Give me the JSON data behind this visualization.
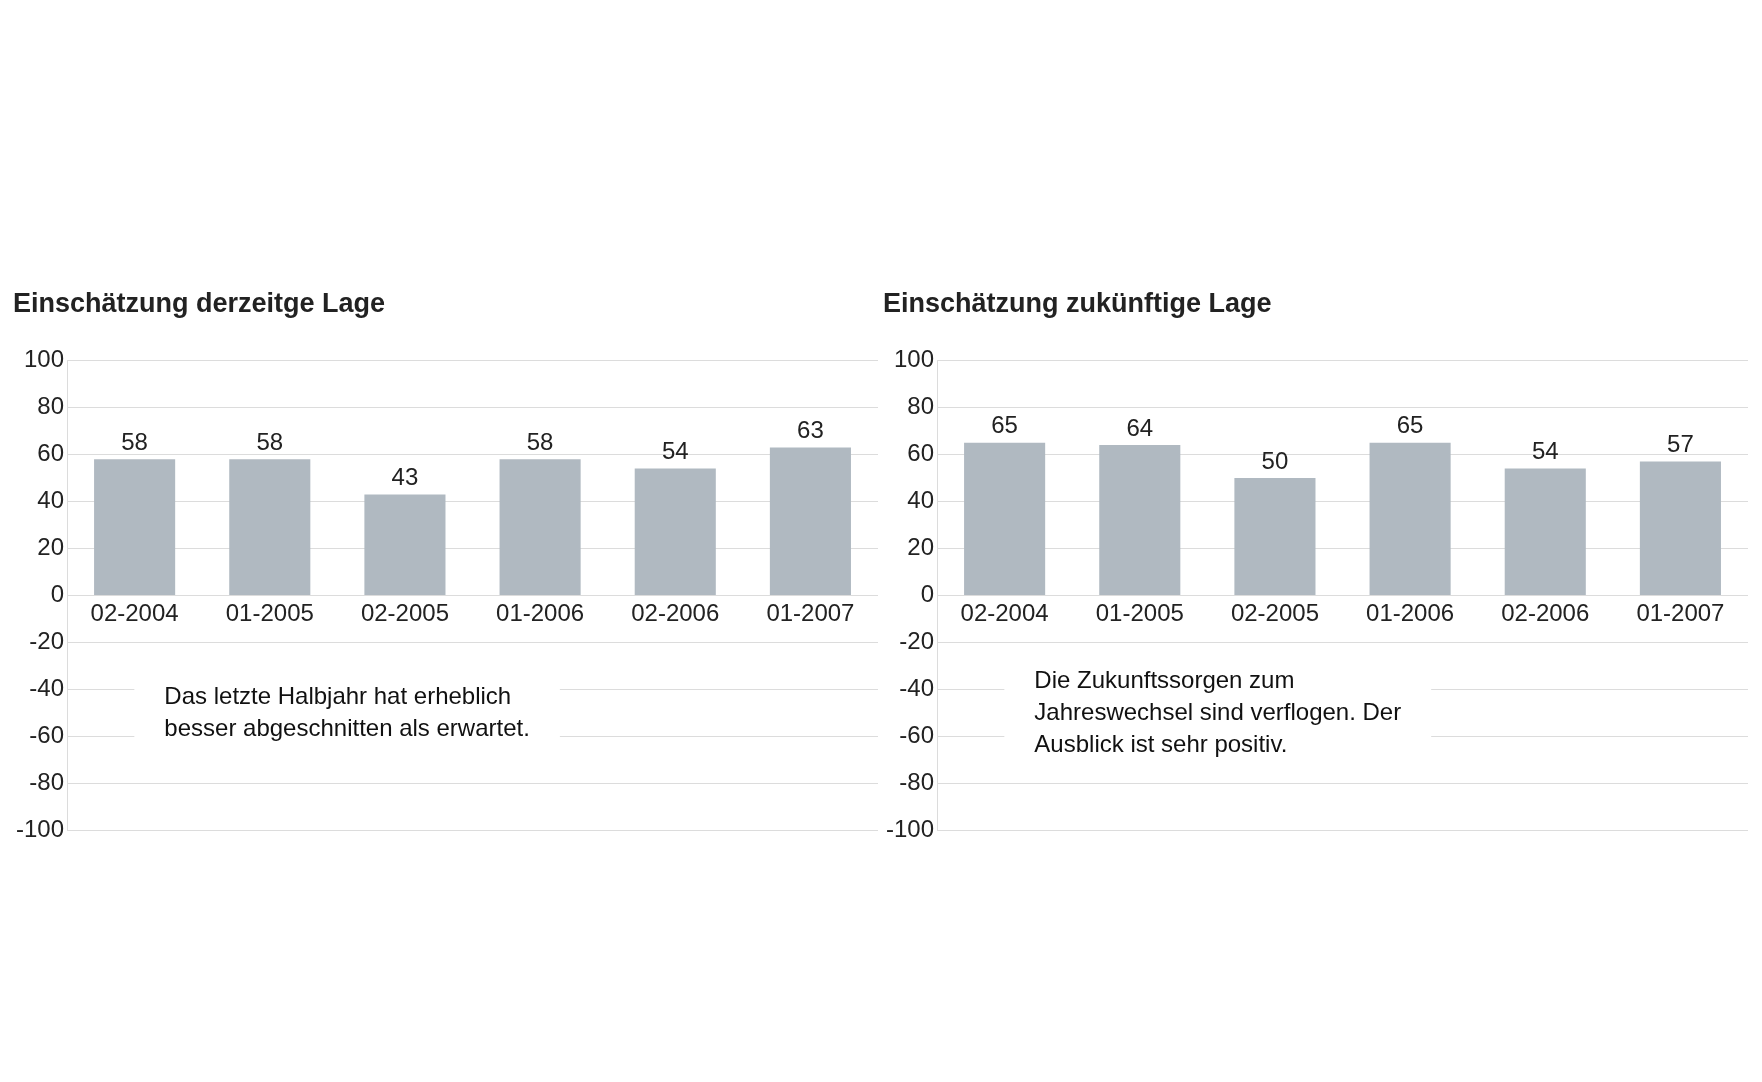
{
  "chart_data": [
    {
      "type": "bar",
      "title": "Einschätzung derzeitge Lage",
      "categories": [
        "02-2004",
        "01-2005",
        "02-2005",
        "01-2006",
        "02-2006",
        "01-2007"
      ],
      "values": [
        58,
        58,
        43,
        58,
        54,
        63
      ],
      "color": "#b0b9c1",
      "ylim": [
        -100,
        100
      ],
      "yticks": [
        -100,
        -80,
        -60,
        -40,
        -20,
        0,
        20,
        40,
        60,
        80,
        100
      ],
      "grid": "y",
      "data_labels": true,
      "annotations": [
        "Das letzte Halbjahr hat erheblich besser abgeschnitten als erwartet."
      ]
    },
    {
      "type": "bar",
      "title": "Einschätzung zukünftige Lage",
      "categories": [
        "02-2004",
        "01-2005",
        "02-2005",
        "01-2006",
        "02-2006",
        "01-2007"
      ],
      "values": [
        65,
        64,
        50,
        65,
        54,
        57
      ],
      "color": "#b0b9c1",
      "ylim": [
        -100,
        100
      ],
      "yticks": [
        -100,
        -80,
        -60,
        -40,
        -20,
        0,
        20,
        40,
        60,
        80,
        100
      ],
      "grid": "y",
      "data_labels": true,
      "annotations": [
        "Die Zukunftssorgen zum Jahreswechsel sind verflogen. Der Ausblick ist sehr positiv."
      ]
    }
  ]
}
